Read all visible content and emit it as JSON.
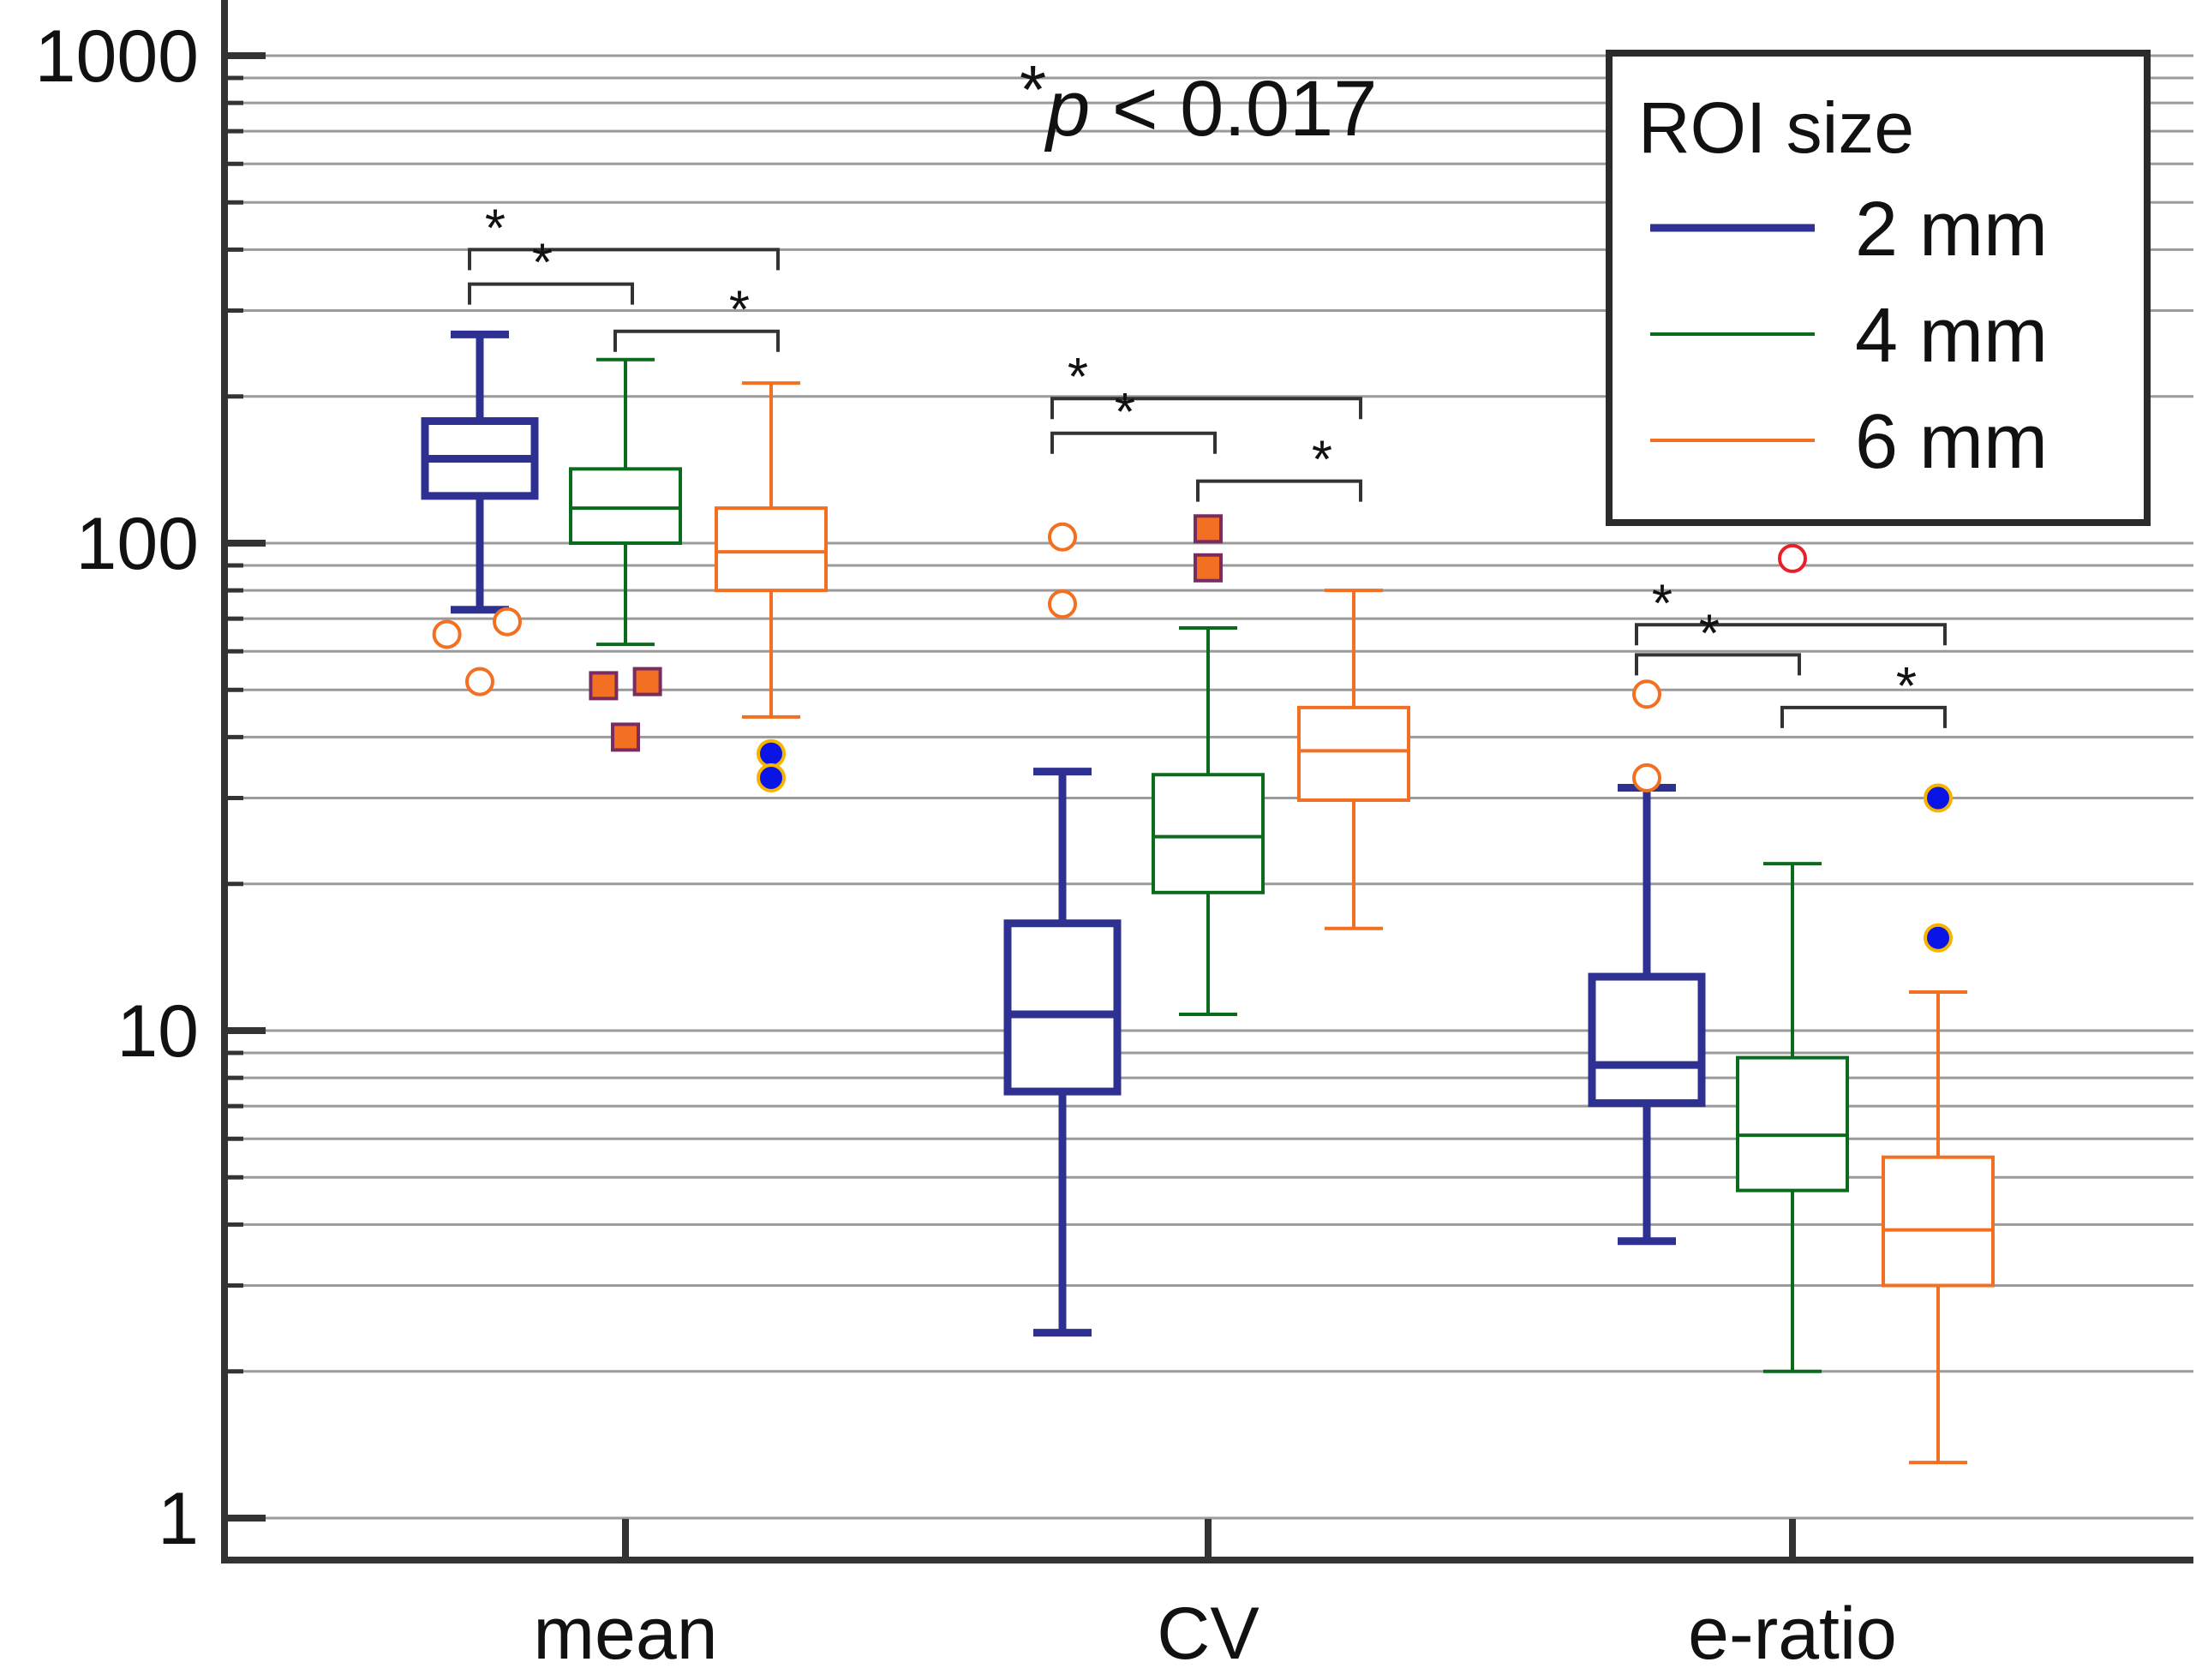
{
  "chart_data": {
    "type": "box",
    "y_scale": "log",
    "ylim": [
      0.85,
      1000
    ],
    "y_ticks": [
      {
        "value": 1000,
        "label": "1000"
      },
      {
        "value": 100,
        "label": "100"
      },
      {
        "value": 10,
        "label": "10"
      },
      {
        "value": 1,
        "label": "1"
      }
    ],
    "categories": [
      "mean",
      "CV",
      "e-ratio"
    ],
    "annotation_star": "*",
    "annotation_p": "p",
    "annotation_rest": " < 0.017",
    "legend": {
      "title": "ROI size",
      "placement": "top-right",
      "entries": [
        {
          "label": "2 mm",
          "color": "#2e3192",
          "key": "2mm"
        },
        {
          "label": "4 mm",
          "color": "#0b6b1d",
          "key": "4mm"
        },
        {
          "label": "6 mm",
          "color": "#f36f21",
          "key": "6mm"
        }
      ]
    },
    "series_styles": {
      "2mm": {
        "color": "#2e3192",
        "heavy": true
      },
      "4mm": {
        "color": "#0b6b1d",
        "heavy": false
      },
      "6mm": {
        "color": "#f36f21",
        "heavy": false
      }
    },
    "boxes": [
      {
        "category": 0,
        "series": "2mm",
        "whisker_low": 73,
        "q1": 125,
        "median": 149,
        "q3": 178,
        "whisker_high": 268
      },
      {
        "category": 0,
        "series": "4mm",
        "whisker_low": 62,
        "q1": 100,
        "median": 118,
        "q3": 142,
        "whisker_high": 238
      },
      {
        "category": 0,
        "series": "6mm",
        "whisker_low": 44,
        "q1": 80,
        "median": 96,
        "q3": 118,
        "whisker_high": 213
      },
      {
        "category": 1,
        "series": "2mm",
        "whisker_low": 2.4,
        "q1": 7.5,
        "median": 10.8,
        "q3": 16.6,
        "whisker_high": 34
      },
      {
        "category": 1,
        "series": "4mm",
        "whisker_low": 10.8,
        "q1": 19.2,
        "median": 25,
        "q3": 33.5,
        "whisker_high": 67
      },
      {
        "category": 1,
        "series": "6mm",
        "whisker_low": 16.2,
        "q1": 29.7,
        "median": 37.5,
        "q3": 46,
        "whisker_high": 80
      },
      {
        "category": 2,
        "series": "2mm",
        "whisker_low": 3.7,
        "q1": 7.1,
        "median": 8.5,
        "q3": 12.9,
        "whisker_high": 31.5
      },
      {
        "category": 2,
        "series": "4mm",
        "whisker_low": 2.0,
        "q1": 4.7,
        "median": 6.1,
        "q3": 8.8,
        "whisker_high": 22
      },
      {
        "category": 2,
        "series": "6mm",
        "whisker_low": 1.3,
        "q1": 3.0,
        "median": 3.9,
        "q3": 5.5,
        "whisker_high": 12
      }
    ],
    "outliers": [
      {
        "category": 0,
        "series": "2mm",
        "x_shift": -0.3,
        "value": 65,
        "marker": "open-circle",
        "color": "#f36f21"
      },
      {
        "category": 0,
        "series": "2mm",
        "x_shift": 0.25,
        "value": 69,
        "marker": "open-circle",
        "color": "#f36f21"
      },
      {
        "category": 0,
        "series": "2mm",
        "x_shift": 0,
        "value": 52,
        "marker": "open-circle",
        "color": "#f36f21"
      },
      {
        "category": 0,
        "series": "4mm",
        "x_shift": -0.2,
        "value": 51,
        "marker": "square",
        "color": "#f36f21",
        "edge": "#7b2c5f"
      },
      {
        "category": 0,
        "series": "4mm",
        "x_shift": 0.2,
        "value": 52,
        "marker": "square",
        "color": "#f36f21",
        "edge": "#7b2c5f"
      },
      {
        "category": 0,
        "series": "4mm",
        "x_shift": 0,
        "value": 40,
        "marker": "square",
        "color": "#f36f21",
        "edge": "#7b2c5f"
      },
      {
        "category": 0,
        "series": "6mm",
        "x_shift": 0,
        "value": 37,
        "marker": "dot",
        "color": "#0a14e6",
        "edge": "#f5b400"
      },
      {
        "category": 0,
        "series": "6mm",
        "x_shift": 0,
        "value": 33,
        "marker": "dot",
        "color": "#0a14e6",
        "edge": "#f5b400"
      },
      {
        "category": 1,
        "series": "2mm",
        "x_shift": 0,
        "value": 103,
        "marker": "open-circle",
        "color": "#f36f21"
      },
      {
        "category": 1,
        "series": "2mm",
        "x_shift": 0,
        "value": 75,
        "marker": "open-circle",
        "color": "#f36f21"
      },
      {
        "category": 1,
        "series": "4mm",
        "x_shift": 0,
        "value": 107,
        "marker": "square",
        "color": "#f36f21",
        "edge": "#7b2c5f"
      },
      {
        "category": 1,
        "series": "4mm",
        "x_shift": 0,
        "value": 89,
        "marker": "square",
        "color": "#f36f21",
        "edge": "#7b2c5f"
      },
      {
        "category": 2,
        "series": "2mm",
        "x_shift": 0,
        "value": 49,
        "marker": "open-circle",
        "color": "#f36f21"
      },
      {
        "category": 2,
        "series": "2mm",
        "x_shift": 0,
        "value": 33,
        "marker": "open-circle",
        "color": "#f36f21"
      },
      {
        "category": 2,
        "series": "4mm",
        "x_shift": 0,
        "value": 93,
        "marker": "open-circle",
        "color": "#e8202a"
      },
      {
        "category": 2,
        "series": "6mm",
        "x_shift": 0,
        "value": 30,
        "marker": "dot",
        "color": "#0a14e6",
        "edge": "#f5b400"
      },
      {
        "category": 2,
        "series": "6mm",
        "x_shift": 0,
        "value": 15.5,
        "marker": "dot",
        "color": "#0a14e6",
        "edge": "#f5b400"
      }
    ],
    "significance_brackets": [
      {
        "category": 0,
        "from": "2mm",
        "to": "6mm",
        "y": 400,
        "label": "*"
      },
      {
        "category": 0,
        "from": "2mm",
        "to": "4mm",
        "y": 340,
        "label": "*"
      },
      {
        "category": 0,
        "from": "4mm",
        "to": "6mm",
        "y": 272,
        "label": "*"
      },
      {
        "category": 1,
        "from": "2mm",
        "to": "6mm",
        "y": 198,
        "label": "*"
      },
      {
        "category": 1,
        "from": "2mm",
        "to": "4mm",
        "y": 168,
        "label": "*"
      },
      {
        "category": 1,
        "from": "4mm",
        "to": "6mm",
        "y": 134,
        "label": "*"
      },
      {
        "category": 2,
        "from": "2mm",
        "to": "6mm",
        "y": 68,
        "label": "*"
      },
      {
        "category": 2,
        "from": "2mm",
        "to": "4mm",
        "y": 59,
        "label": "*"
      },
      {
        "category": 2,
        "from": "4mm",
        "to": "6mm",
        "y": 46,
        "label": "*"
      }
    ]
  }
}
